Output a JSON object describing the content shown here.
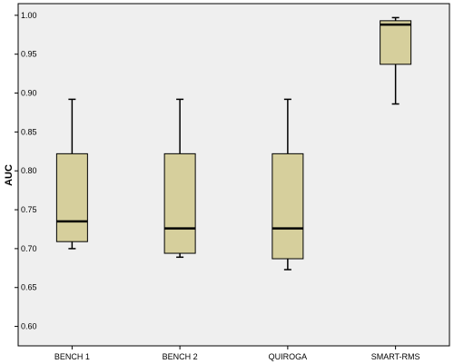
{
  "chart_data": {
    "type": "boxplot",
    "title": "",
    "xlabel": "",
    "ylabel": "AUC",
    "ylim": [
      0.575,
      1.015
    ],
    "y_ticks": [
      "0.60",
      "0.65",
      "0.70",
      "0.75",
      "0.80",
      "0.85",
      "0.90",
      "0.95",
      "1.00"
    ],
    "grid": false,
    "legend": "none",
    "box_color": "#d6cf9c",
    "plot_bg": "#efefef",
    "categories": [
      "BENCH 1",
      "BENCH 2",
      "QUIROGA",
      "SMART-RMS"
    ],
    "boxes": [
      {
        "min": 0.7,
        "q1": 0.709,
        "median": 0.735,
        "q3": 0.822,
        "max": 0.892
      },
      {
        "min": 0.689,
        "q1": 0.694,
        "median": 0.726,
        "q3": 0.822,
        "max": 0.892
      },
      {
        "min": 0.673,
        "q1": 0.687,
        "median": 0.726,
        "q3": 0.822,
        "max": 0.892
      },
      {
        "min": 0.886,
        "q1": 0.937,
        "median": 0.988,
        "q3": 0.993,
        "max": 0.997
      }
    ]
  }
}
